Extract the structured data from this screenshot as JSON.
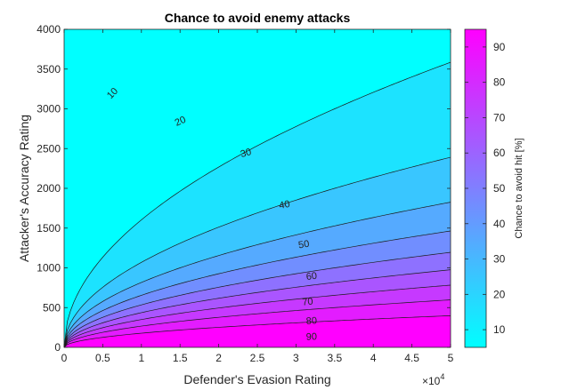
{
  "chart_data": {
    "type": "heatmap",
    "title": "Chance to avoid enemy attacks",
    "xlabel": "Defender's Evasion Rating",
    "ylabel": "Attacker's Accuracy Rating",
    "xlim": [
      0,
      50000
    ],
    "ylim": [
      0,
      4000
    ],
    "x_ticks": [
      "0",
      "0.5",
      "1",
      "1.5",
      "2",
      "2.5",
      "3",
      "3.5",
      "4",
      "4.5",
      "5"
    ],
    "x_tick_values": [
      0,
      5000,
      10000,
      15000,
      20000,
      25000,
      30000,
      35000,
      40000,
      45000,
      50000
    ],
    "x_multiplier_base": "×10",
    "x_multiplier_exp": "4",
    "y_ticks": [
      "0",
      "500",
      "1000",
      "1500",
      "2000",
      "2500",
      "3000",
      "3500",
      "4000"
    ],
    "y_tick_values": [
      0,
      500,
      1000,
      1500,
      2000,
      2500,
      3000,
      3500,
      4000
    ],
    "contour_levels": [
      10,
      20,
      30,
      40,
      50,
      60,
      70,
      80,
      90
    ],
    "contour_labels": [
      "10",
      "20",
      "30",
      "40",
      "50",
      "60",
      "70",
      "80",
      "90"
    ],
    "contour_label_positions": [
      {
        "level": 10,
        "x": 6200,
        "y": 3200
      },
      {
        "level": 20,
        "x": 15000,
        "y": 2850
      },
      {
        "level": 30,
        "x": 23500,
        "y": 2450
      },
      {
        "level": 40,
        "x": 28500,
        "y": 1800
      },
      {
        "level": 50,
        "x": 31000,
        "y": 1300
      },
      {
        "level": 60,
        "x": 32000,
        "y": 900
      },
      {
        "level": 70,
        "x": 31500,
        "y": 580
      },
      {
        "level": 80,
        "x": 32000,
        "y": 340
      },
      {
        "level": 90,
        "x": 32000,
        "y": 140
      }
    ],
    "colormap": "cool",
    "colormap_colors": [
      "#00ffff",
      "#ff00ff"
    ],
    "color_range": [
      5,
      95
    ],
    "colorbar": {
      "label": "Chance to avoid hit [%]",
      "ticks": [
        "10",
        "20",
        "30",
        "40",
        "50",
        "60",
        "70",
        "80",
        "90"
      ],
      "tick_values": [
        10,
        20,
        30,
        40,
        50,
        60,
        70,
        80,
        90
      ]
    },
    "grid": false
  }
}
